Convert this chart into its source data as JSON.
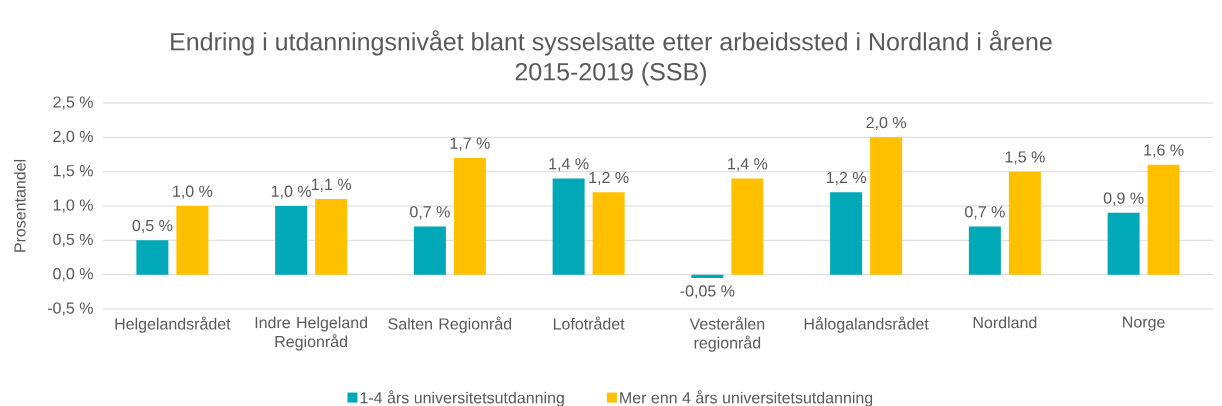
{
  "chart_data": {
    "type": "bar",
    "title": "Endring i utdanningsnivået blant sysselsatte etter arbeidssted i Nordland i årene 2015-2019 (SSB)",
    "ylabel": "Prosentandel",
    "categories": [
      "Helgelandsrådet",
      "Indre Helgeland Regionråd",
      "Salten Regionråd",
      "Lofotrådet",
      "Vesterålen regionråd",
      "Hålogalandsrådet",
      "Nordland",
      "Norge"
    ],
    "series": [
      {
        "name": "1-4 års universitetsutdanning",
        "color": "#00a8b8",
        "values": [
          0.5,
          1.0,
          0.7,
          1.4,
          -0.05,
          1.2,
          0.7,
          0.9
        ],
        "value_labels": [
          "0,5 %",
          "1,0 %",
          "0,7 %",
          "1,4 %",
          "-0,05 %",
          "1,2 %",
          "0,7 %",
          "0,9 %"
        ]
      },
      {
        "name": "Mer enn 4 års universitetsutdanning",
        "color": "#ffc000",
        "values": [
          1.0,
          1.1,
          1.7,
          1.2,
          1.4,
          2.0,
          1.5,
          1.6
        ],
        "value_labels": [
          "1,0 %",
          "1,1 %",
          "1,7 %",
          "1,2 %",
          "1,4 %",
          "2,0 %",
          "1,5 %",
          "1,6 %"
        ]
      }
    ],
    "ylim": [
      -0.5,
      2.5
    ],
    "yticks": [
      {
        "value": -0.5,
        "label": "-0,5 %"
      },
      {
        "value": 0.0,
        "label": "0,0 %"
      },
      {
        "value": 0.5,
        "label": "0,5 %"
      },
      {
        "value": 1.0,
        "label": "1,0 %"
      },
      {
        "value": 1.5,
        "label": "1,5 %"
      },
      {
        "value": 2.0,
        "label": "2,0 %"
      },
      {
        "value": 2.5,
        "label": "2,5 %"
      }
    ],
    "grid": "y",
    "legend": "bottom"
  }
}
